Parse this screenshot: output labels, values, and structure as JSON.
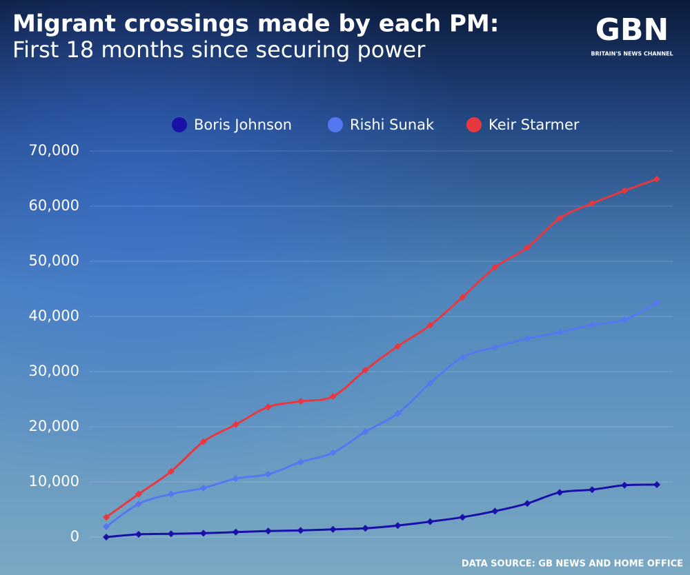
{
  "chart_data": {
    "type": "line",
    "title": "Migrant crossings made by each PM:",
    "subtitle": "First 18 months since securing power",
    "source": "DATA SOURCE: GB NEWS AND HOME OFFICE",
    "categories": [
      null,
      null,
      null,
      null,
      null,
      null,
      null,
      null,
      null,
      null,
      null,
      null,
      null,
      null,
      null,
      null,
      null,
      null
    ],
    "series": [
      {
        "name": "Boris Johnson",
        "color": "#1a0fa8",
        "values": [
          0,
          500,
          600,
          700,
          900,
          1100,
          1200,
          1400,
          1600,
          2100,
          2800,
          3600,
          4700,
          6100,
          8100,
          8600,
          9400,
          9500
        ]
      },
      {
        "name": "Rishi Sunak",
        "color": "#5577f0",
        "values": [
          1900,
          6000,
          7800,
          8900,
          10600,
          11400,
          13600,
          15300,
          19100,
          22400,
          27900,
          32600,
          34400,
          36000,
          37100,
          38500,
          39400,
          42500
        ]
      },
      {
        "name": "Keir Starmer",
        "color": "#e8383f",
        "values": [
          3600,
          7800,
          11900,
          17300,
          20400,
          23600,
          24600,
          25500,
          30300,
          34600,
          38400,
          43500,
          48900,
          52500,
          57800,
          60500,
          62800,
          64900
        ]
      }
    ],
    "ylim": [
      0,
      70000
    ],
    "yticks": [
      0,
      {
        "value": 10000,
        "label": "10,000"
      },
      {
        "value": 20000,
        "label": "20,000"
      },
      {
        "value": 30000,
        "label": "30,000"
      },
      {
        "value": 40000,
        "label": "40,000"
      },
      {
        "value": 50000,
        "label": "50,000"
      },
      {
        "value": 60000,
        "label": "60,000"
      },
      {
        "value": 70000,
        "label": "70,000"
      }
    ],
    "grid": true,
    "legend": "top"
  },
  "brand": {
    "logo": "GBN",
    "tagline": "BRITAIN'S NEWS CHANNEL"
  }
}
